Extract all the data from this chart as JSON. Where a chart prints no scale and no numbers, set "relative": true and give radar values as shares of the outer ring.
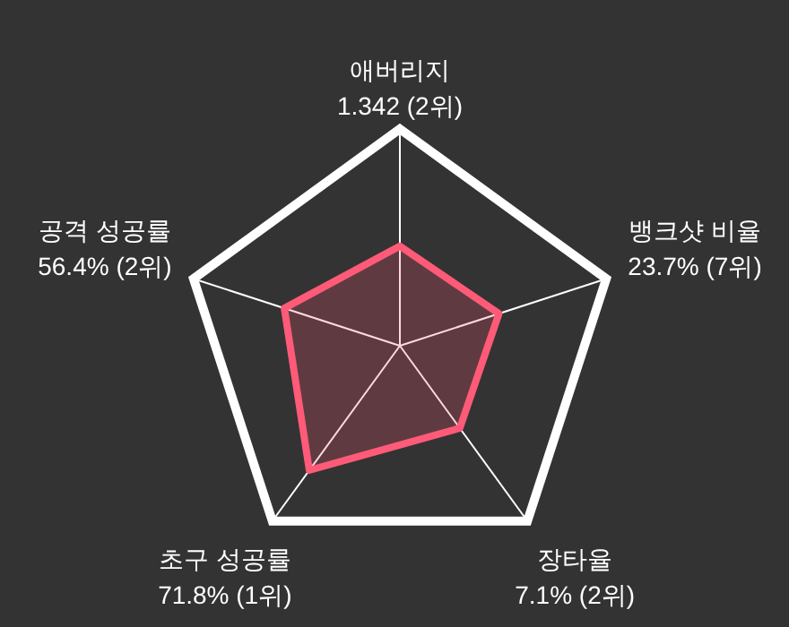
{
  "chart_data": {
    "type": "radar",
    "relative": true,
    "categories": [
      "애버리지\n1.342 (2위)",
      "뱅크샷 비율\n23.7% (7위)",
      "장타율\n7.1% (2위)",
      "초구 성공률\n71.8% (1위)",
      "공격 성공률\n56.4% (2위)"
    ],
    "series": [
      {
        "color": "#ff5a78",
        "values": [
          0.46,
          0.48,
          0.47,
          0.71,
          0.56
        ]
      }
    ]
  }
}
